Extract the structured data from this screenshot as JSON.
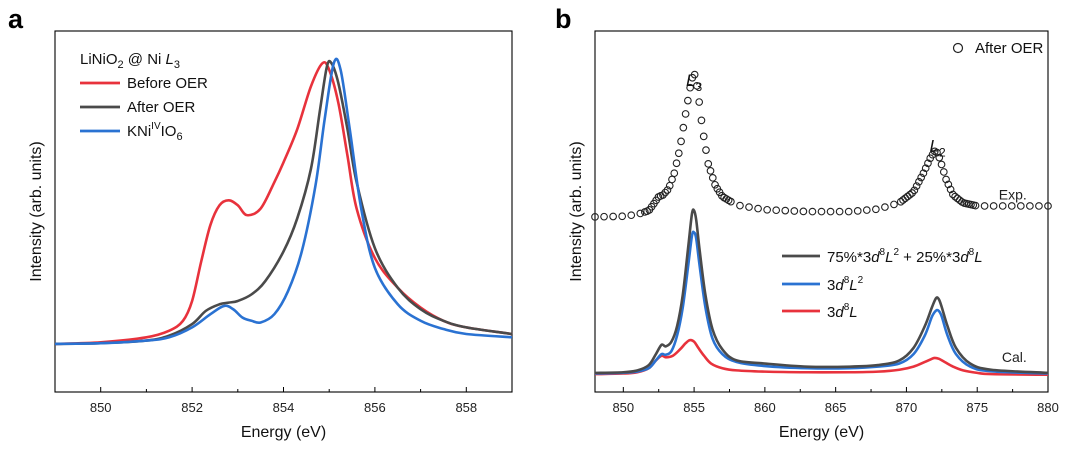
{
  "panels": [
    {
      "letter": "a",
      "chart_data": {
        "type": "line",
        "title": "LiNiO2 @ Ni L3",
        "title_parts": {
          "pre": "LiNiO",
          "sub": "2",
          "mid": " @ Ni ",
          "ital": "L",
          "sub2": "3"
        },
        "xlabel": "Energy  (eV)",
        "ylabel": "Intensity  (arb. units)",
        "xlim": [
          849,
          859
        ],
        "ylim": [
          0,
          1
        ],
        "xticks": [
          850,
          852,
          854,
          856,
          858
        ],
        "legend_position": "top-left",
        "series": [
          {
            "name": "Before OER",
            "label": "Before OER",
            "color": "#e8323c",
            "x": [
              849,
              850,
              851,
              851.5,
              851.8,
              852.0,
              852.2,
              852.4,
              852.6,
              852.8,
              853.0,
              853.2,
              853.5,
              853.8,
              854.0,
              854.3,
              854.6,
              854.85,
              855.0,
              855.2,
              855.4,
              855.6,
              856.0,
              856.5,
              857.0,
              857.5,
              858.0,
              859
            ],
            "y": [
              0.07,
              0.075,
              0.09,
              0.11,
              0.14,
              0.2,
              0.32,
              0.43,
              0.49,
              0.505,
              0.49,
              0.46,
              0.48,
              0.56,
              0.62,
              0.72,
              0.85,
              0.92,
              0.9,
              0.8,
              0.64,
              0.48,
              0.33,
              0.24,
              0.18,
              0.14,
              0.12,
              0.1
            ]
          },
          {
            "name": "After OER",
            "label": "After OER",
            "color": "#4a4a4a",
            "x": [
              849,
              850,
              851,
              851.5,
              852.0,
              852.3,
              852.6,
              852.8,
              853.0,
              853.3,
              853.6,
              854.0,
              854.3,
              854.6,
              854.8,
              854.95,
              855.05,
              855.2,
              855.4,
              855.6,
              856.0,
              856.5,
              857.0,
              857.5,
              858.0,
              859
            ],
            "y": [
              0.07,
              0.072,
              0.08,
              0.095,
              0.13,
              0.17,
              0.19,
              0.195,
              0.2,
              0.22,
              0.26,
              0.35,
              0.45,
              0.6,
              0.78,
              0.91,
              0.92,
              0.86,
              0.72,
              0.56,
              0.36,
              0.24,
              0.175,
              0.14,
              0.12,
              0.1
            ]
          },
          {
            "name": "KNiIVIO6",
            "label": "KNi^IV IO6",
            "color": "#2a72d2",
            "x": [
              849,
              850,
              851,
              851.5,
              852.0,
              852.4,
              852.7,
              852.9,
              853.1,
              853.3,
              853.5,
              853.8,
              854.1,
              854.4,
              854.7,
              854.9,
              855.1,
              855.25,
              855.45,
              855.7,
              856.0,
              856.5,
              857.0,
              857.5,
              858.0,
              859
            ],
            "y": [
              0.07,
              0.072,
              0.08,
              0.09,
              0.12,
              0.16,
              0.185,
              0.175,
              0.15,
              0.14,
              0.135,
              0.16,
              0.23,
              0.35,
              0.55,
              0.75,
              0.92,
              0.9,
              0.72,
              0.48,
              0.3,
              0.19,
              0.14,
              0.115,
              0.1,
              0.09
            ]
          }
        ]
      }
    },
    {
      "letter": "b",
      "chart_data": {
        "type": "line",
        "xlabel": "Energy  (eV)",
        "ylabel": "Intensity  (arb. units)",
        "xlim": [
          848,
          880
        ],
        "ylim": [
          0,
          1
        ],
        "xticks": [
          850,
          855,
          860,
          865,
          870,
          875,
          880
        ],
        "annotations": [
          {
            "text": "L3",
            "base": "L",
            "sub": "3",
            "x": 855.0,
            "y": 0.93
          },
          {
            "text": "L2",
            "base": "L",
            "sub": "2",
            "x": 872.2,
            "y": 0.72
          },
          {
            "text": "Exp.",
            "x": 878.5,
            "y": 0.565
          },
          {
            "text": "Cal.",
            "x": 878.5,
            "y": 0.045
          }
        ],
        "exp_series": {
          "name": "After OER",
          "label": "After OER",
          "marker": "open-circle",
          "color": "#222222",
          "x": [
            848,
            850,
            851,
            851.8,
            852.2,
            852.5,
            852.8,
            853.2,
            853.6,
            854.0,
            854.4,
            854.7,
            854.9,
            855.0,
            855.1,
            855.3,
            855.6,
            856.0,
            856.5,
            857.0,
            858.0,
            860.0,
            863.0,
            866.0,
            868.0,
            869.5,
            870.5,
            871.2,
            871.7,
            872.0,
            872.2,
            872.4,
            872.8,
            873.3,
            874.0,
            875.0,
            876.0,
            880
          ],
          "y": [
            0.51,
            0.512,
            0.518,
            0.53,
            0.555,
            0.575,
            0.58,
            0.6,
            0.65,
            0.73,
            0.84,
            0.92,
            0.96,
            0.97,
            0.96,
            0.9,
            0.79,
            0.68,
            0.61,
            0.575,
            0.548,
            0.533,
            0.527,
            0.527,
            0.535,
            0.555,
            0.59,
            0.65,
            0.7,
            0.72,
            0.715,
            0.69,
            0.63,
            0.58,
            0.555,
            0.545,
            0.545,
            0.545
          ]
        },
        "calc_series": [
          {
            "name": "75%*3d8L2 + 25%*3d8L",
            "label_parts": [
              "75%*3",
              "d",
              "8",
              "L",
              "2",
              " +  25%*3",
              "d",
              "8",
              "L"
            ],
            "color": "#4a4a4a",
            "x": [
              848,
              850,
              851,
              851.8,
              852.3,
              852.7,
              853.0,
              853.4,
              853.8,
              854.2,
              854.6,
              854.85,
              855.0,
              855.15,
              855.4,
              855.8,
              856.3,
              857.0,
              858.0,
              860.0,
              863.0,
              866.0,
              868.0,
              869.5,
              870.5,
              871.3,
              871.8,
              872.1,
              872.3,
              872.5,
              872.9,
              873.5,
              874.5,
              876.0,
              880
            ],
            "y": [
              0.01,
              0.012,
              0.018,
              0.035,
              0.07,
              0.1,
              0.095,
              0.11,
              0.16,
              0.26,
              0.42,
              0.52,
              0.53,
              0.5,
              0.4,
              0.26,
              0.15,
              0.085,
              0.05,
              0.04,
              0.03,
              0.03,
              0.035,
              0.05,
              0.09,
              0.16,
              0.22,
              0.25,
              0.245,
              0.22,
              0.16,
              0.09,
              0.04,
              0.02,
              0.01
            ]
          },
          {
            "name": "3d8L2",
            "label_parts": [
              "3",
              "d",
              "8",
              "L",
              "2"
            ],
            "color": "#2a72d2",
            "x": [
              848,
              850,
              851,
              851.8,
              852.3,
              852.7,
              853.0,
              853.4,
              853.8,
              854.2,
              854.6,
              854.85,
              855.0,
              855.15,
              855.4,
              855.8,
              856.3,
              857.0,
              858.0,
              860.0,
              863.0,
              866.0,
              868.0,
              869.5,
              870.5,
              871.3,
              871.8,
              872.1,
              872.3,
              872.5,
              872.9,
              873.5,
              874.5,
              876.0,
              880
            ],
            "y": [
              0.008,
              0.01,
              0.014,
              0.025,
              0.05,
              0.07,
              0.068,
              0.08,
              0.13,
              0.22,
              0.36,
              0.45,
              0.46,
              0.44,
              0.35,
              0.22,
              0.12,
              0.07,
              0.045,
              0.032,
              0.025,
              0.025,
              0.03,
              0.04,
              0.07,
              0.13,
              0.19,
              0.21,
              0.208,
              0.19,
              0.13,
              0.07,
              0.03,
              0.015,
              0.008
            ]
          },
          {
            "name": "3d8L",
            "label_parts": [
              "3",
              "d",
              "8",
              "L"
            ],
            "color": "#e8323c",
            "x": [
              848,
              850,
              851,
              851.8,
              852.3,
              852.7,
              853.0,
              853.5,
              854.0,
              854.4,
              854.7,
              855.0,
              855.3,
              855.7,
              856.2,
              857.0,
              858.0,
              860.0,
              863.0,
              866.0,
              868.0,
              869.5,
              870.5,
              871.3,
              871.8,
              872.0,
              872.3,
              872.7,
              873.3,
              874.0,
              875.0,
              876.0,
              880
            ],
            "y": [
              0.006,
              0.008,
              0.012,
              0.025,
              0.05,
              0.065,
              0.06,
              0.065,
              0.085,
              0.105,
              0.115,
              0.11,
              0.09,
              0.065,
              0.04,
              0.025,
              0.018,
              0.014,
              0.012,
              0.012,
              0.014,
              0.02,
              0.03,
              0.045,
              0.055,
              0.058,
              0.055,
              0.045,
              0.03,
              0.018,
              0.01,
              0.006,
              0.004
            ]
          }
        ]
      }
    }
  ]
}
